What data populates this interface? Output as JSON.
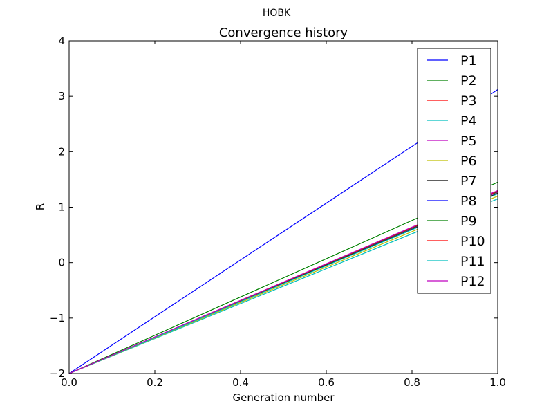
{
  "suptitle": "HOBK",
  "chart_data": {
    "type": "line",
    "title": "Convergence history",
    "xlabel": "Generation number",
    "ylabel": "R",
    "xlim": [
      0.0,
      1.0
    ],
    "ylim": [
      -2,
      4
    ],
    "xticks": [
      0.0,
      0.2,
      0.4,
      0.6,
      0.8,
      1.0
    ],
    "xtick_labels": [
      "0.0",
      "0.2",
      "0.4",
      "0.6",
      "0.8",
      "1.0"
    ],
    "yticks": [
      -2,
      -1,
      0,
      1,
      2,
      3,
      4
    ],
    "ytick_labels": [
      "−2",
      "−1",
      "0",
      "1",
      "2",
      "3",
      "4"
    ],
    "grid": false,
    "legend_position": "top-right",
    "x": [
      0.0,
      1.0
    ],
    "series": [
      {
        "name": "P1",
        "color": "#0000ff",
        "values": [
          -2.0,
          3.12
        ]
      },
      {
        "name": "P2",
        "color": "#008000",
        "values": [
          -2.0,
          1.45
        ]
      },
      {
        "name": "P3",
        "color": "#ff0000",
        "values": [
          -2.0,
          1.28
        ]
      },
      {
        "name": "P4",
        "color": "#00bfbf",
        "values": [
          -2.0,
          1.15
        ]
      },
      {
        "name": "P5",
        "color": "#bf00bf",
        "values": [
          -2.0,
          1.27
        ]
      },
      {
        "name": "P6",
        "color": "#bfbf00",
        "values": [
          -2.0,
          1.2
        ]
      },
      {
        "name": "P7",
        "color": "#000000",
        "values": [
          -2.0,
          1.25
        ]
      },
      {
        "name": "P8",
        "color": "#0000ff",
        "values": [
          -2.0,
          1.28
        ]
      },
      {
        "name": "P9",
        "color": "#008000",
        "values": [
          -2.0,
          1.28
        ]
      },
      {
        "name": "P10",
        "color": "#ff0000",
        "values": [
          -2.0,
          1.29
        ]
      },
      {
        "name": "P11",
        "color": "#00bfbf",
        "values": [
          -2.0,
          1.24
        ]
      },
      {
        "name": "P12",
        "color": "#bf00bf",
        "values": [
          -2.0,
          1.3
        ]
      }
    ]
  }
}
